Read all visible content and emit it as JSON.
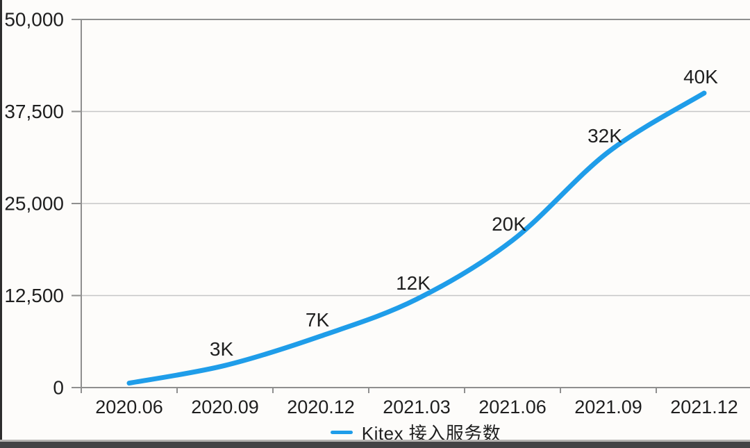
{
  "chart_data": {
    "type": "line",
    "title": "",
    "categories": [
      "2020.06",
      "2020.09",
      "2020.12",
      "2021.03",
      "2021.06",
      "2021.09",
      "2021.12"
    ],
    "series": [
      {
        "name": "Kitex 接入服务数",
        "color": "#1f9de9",
        "values": [
          600,
          3000,
          7000,
          12000,
          20000,
          32000,
          40000
        ],
        "point_labels": [
          "",
          "3K",
          "7K",
          "12K",
          "20K",
          "32K",
          "40K"
        ]
      }
    ],
    "ylim": [
      0,
      50000
    ],
    "y_ticks": [
      0,
      12500,
      25000,
      37500,
      50000
    ],
    "y_tick_labels": [
      "0",
      "12,500",
      "25,000",
      "37,500",
      "50,000"
    ],
    "grid": true,
    "legend_position": "bottom"
  },
  "legend": {
    "label": "Kitex 接入服务数",
    "marker_color": "#1f9de9"
  },
  "colors": {
    "background": "#fdfcfa",
    "grid": "#c6c6c6",
    "axis": "#8f8f8f",
    "text": "#1f1f1f",
    "line": "#1f9de9",
    "bottom_bar": "#434345",
    "left_edge": "#2d2d2d"
  }
}
